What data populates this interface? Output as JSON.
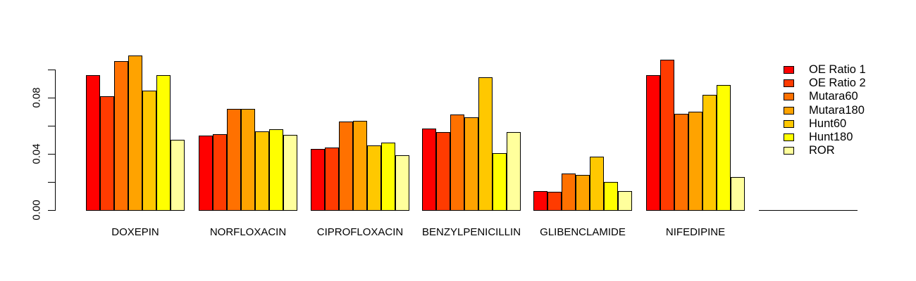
{
  "chart_data": {
    "type": "bar",
    "title": "",
    "xlabel": "",
    "ylabel": "",
    "categories": [
      "DOXEPIN",
      "NORFLOXACIN",
      "CIPROFLOXACIN",
      "BENZYLPENICILLIN",
      "GLIBENCLAMIDE",
      "NIFEDIPINE"
    ],
    "series": [
      {
        "name": "OE Ratio 1",
        "color": "#FF0000",
        "values": [
          0.096,
          0.053,
          0.0435,
          0.058,
          0.0135,
          0.096
        ]
      },
      {
        "name": "OE Ratio 2",
        "color": "#FF3B00",
        "values": [
          0.081,
          0.054,
          0.0445,
          0.0555,
          0.013,
          0.107
        ]
      },
      {
        "name": "Mutara60",
        "color": "#FF7100",
        "values": [
          0.106,
          0.072,
          0.063,
          0.068,
          0.026,
          0.0685
        ]
      },
      {
        "name": "Mutara180",
        "color": "#FFA300",
        "values": [
          0.11,
          0.072,
          0.0635,
          0.066,
          0.025,
          0.07
        ]
      },
      {
        "name": "Hunt60",
        "color": "#FFC800",
        "values": [
          0.085,
          0.056,
          0.046,
          0.0945,
          0.038,
          0.082
        ]
      },
      {
        "name": "Hunt180",
        "color": "#FFFF00",
        "values": [
          0.096,
          0.0575,
          0.048,
          0.0405,
          0.02,
          0.089
        ]
      },
      {
        "name": "ROR",
        "color": "#FFFF9C",
        "values": [
          0.05,
          0.0535,
          0.039,
          0.0555,
          0.0135,
          0.0235
        ]
      }
    ],
    "ylim": [
      0,
      0.1
    ],
    "yticks": [
      0,
      0.02,
      0.04,
      0.06,
      0.08,
      0.1
    ],
    "labeled_yticks": [
      {
        "value": 0,
        "label": "0.00"
      },
      {
        "value": 0.04,
        "label": "0.04"
      },
      {
        "value": 0.08,
        "label": "0.08"
      }
    ],
    "grid": false,
    "legend_position": "right",
    "bar_border_color": "#000000",
    "empty_trailing_group": true
  },
  "legend": {
    "items": [
      {
        "label": "OE Ratio 1",
        "color": "#FF0000"
      },
      {
        "label": "OE Ratio 2",
        "color": "#FF3B00"
      },
      {
        "label": "Mutara60",
        "color": "#FF7100"
      },
      {
        "label": "Mutara180",
        "color": "#FFA300"
      },
      {
        "label": "Hunt60",
        "color": "#FFC800"
      },
      {
        "label": "Hunt180",
        "color": "#FFFF00"
      },
      {
        "label": "ROR",
        "color": "#FFFF9C"
      }
    ]
  }
}
